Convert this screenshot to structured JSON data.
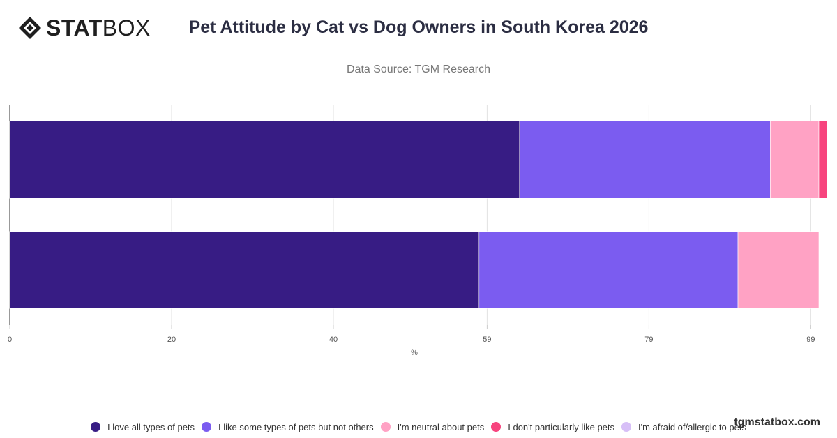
{
  "brand": {
    "logo_bold": "STAT",
    "logo_light": "BOX",
    "watermark": "tgmstatbox.com"
  },
  "colors": {
    "love_all": "#371c84",
    "like_some": "#7b5cf0",
    "neutral": "#ffa2c4",
    "dont_like": "#f7447e",
    "afraid": "#d7bff7"
  },
  "chart_data": {
    "type": "bar",
    "orientation": "horizontal",
    "stacked": true,
    "title": "Pet Attitude by Cat vs Dog Owners in South Korea 2026",
    "subtitle": "Data Source: TGM Research",
    "xlabel": "%",
    "ylabel": "",
    "categories": [
      "",
      ""
    ],
    "xlim": [
      0,
      100
    ],
    "ticks": [
      0,
      20,
      40,
      59,
      79,
      99
    ],
    "grid": true,
    "legend_position": "bottom",
    "series": [
      {
        "name": "I love all types of pets",
        "color": "#371c84",
        "values": [
          63,
          58
        ]
      },
      {
        "name": "I like some types of pets but not others",
        "color": "#7b5cf0",
        "values": [
          31,
          32
        ]
      },
      {
        "name": "I'm neutral about pets",
        "color": "#ffa2c4",
        "values": [
          6,
          10
        ]
      },
      {
        "name": "I don't particularly like pets",
        "color": "#f7447e",
        "values": [
          1,
          0
        ]
      },
      {
        "name": "I'm afraid of/allergic to pets",
        "color": "#d7bff7",
        "values": [
          0,
          0
        ]
      }
    ]
  }
}
